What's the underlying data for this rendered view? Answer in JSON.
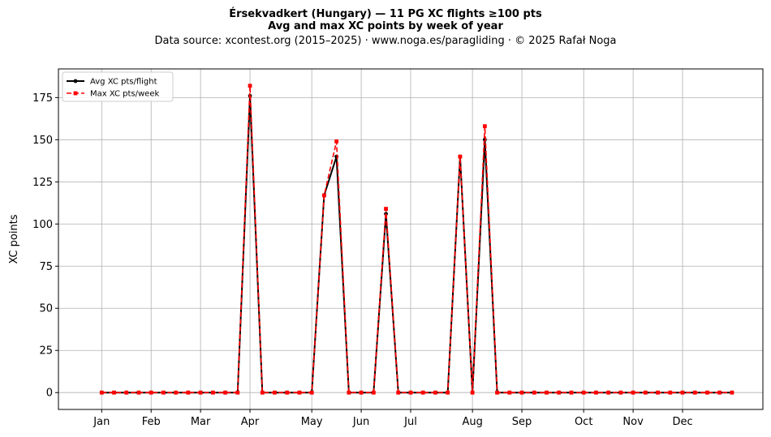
{
  "chart_data": {
    "type": "line",
    "title": "Érsekvadkert (Hungary)  —  11 PG XC flights ≥100 pts",
    "title2": "Avg and max XC points by week of year",
    "subtitle": "Data source: xcontest.org (2015–2025)  ·  www.noga.es/paragliding  ·  © 2025 Rafał Noga",
    "xlabel": "",
    "ylabel": "XC points",
    "xlim": [
      -2.5,
      54.5
    ],
    "ylim": [
      -10,
      192
    ],
    "yticks": [
      0,
      25,
      50,
      75,
      100,
      125,
      150,
      175
    ],
    "xticks": [
      {
        "label": "Jan",
        "x": 1
      },
      {
        "label": "Feb",
        "x": 5
      },
      {
        "label": "Mar",
        "x": 9
      },
      {
        "label": "Apr",
        "x": 13
      },
      {
        "label": "May",
        "x": 18
      },
      {
        "label": "Jun",
        "x": 22
      },
      {
        "label": "Jul",
        "x": 26
      },
      {
        "label": "Aug",
        "x": 31
      },
      {
        "label": "Sep",
        "x": 35
      },
      {
        "label": "Oct",
        "x": 40
      },
      {
        "label": "Nov",
        "x": 44
      },
      {
        "label": "Dec",
        "x": 48
      }
    ],
    "grid": true,
    "legend_position": "top-left",
    "x": [
      1,
      2,
      3,
      4,
      5,
      6,
      7,
      8,
      9,
      10,
      11,
      12,
      13,
      14,
      15,
      16,
      17,
      18,
      19,
      20,
      21,
      22,
      23,
      24,
      25,
      26,
      27,
      28,
      29,
      30,
      31,
      32,
      33,
      34,
      35,
      36,
      37,
      38,
      39,
      40,
      41,
      42,
      43,
      44,
      45,
      46,
      47,
      48,
      49,
      50,
      51,
      52
    ],
    "series": [
      {
        "name": "Avg XC pts/flight",
        "color": "#000000",
        "marker": "circle",
        "dash": "solid",
        "values": [
          0,
          0,
          0,
          0,
          0,
          0,
          0,
          0,
          0,
          0,
          0,
          0,
          176,
          0,
          0,
          0,
          0,
          0,
          117,
          140,
          0,
          0,
          0,
          106,
          0,
          0,
          0,
          0,
          0,
          140,
          0,
          150,
          0,
          0,
          0,
          0,
          0,
          0,
          0,
          0,
          0,
          0,
          0,
          0,
          0,
          0,
          0,
          0,
          0,
          0,
          0,
          0
        ]
      },
      {
        "name": "Max XC pts/week",
        "color": "#ff0000",
        "marker": "square",
        "dash": "dashed",
        "values": [
          0,
          0,
          0,
          0,
          0,
          0,
          0,
          0,
          0,
          0,
          0,
          0,
          182,
          0,
          0,
          0,
          0,
          0,
          117,
          149,
          0,
          0,
          0,
          109,
          0,
          0,
          0,
          0,
          0,
          140,
          0,
          158,
          0,
          0,
          0,
          0,
          0,
          0,
          0,
          0,
          0,
          0,
          0,
          0,
          0,
          0,
          0,
          0,
          0,
          0,
          0,
          0
        ]
      }
    ]
  }
}
